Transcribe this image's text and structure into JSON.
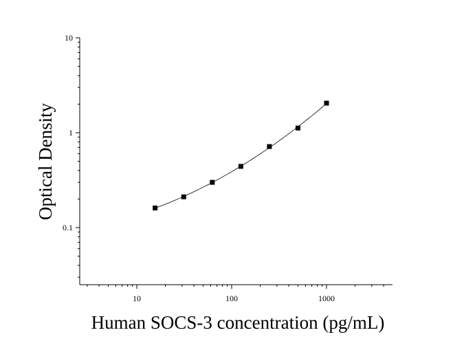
{
  "chart_data": {
    "type": "scatter",
    "xlabel": "Human SOCS-3 concentration (pg/mL)",
    "ylabel": "Optical Density",
    "xscale": "log",
    "yscale": "log",
    "xlim": [
      2.5,
      4500
    ],
    "ylim": [
      0.025,
      10
    ],
    "x_ticks": [
      10,
      100,
      1000
    ],
    "x_tick_labels": [
      "10",
      "100",
      "1000"
    ],
    "y_ticks": [
      0.1,
      1,
      10
    ],
    "y_tick_labels": [
      "0.1",
      "1",
      "10"
    ],
    "grid": false,
    "legend": "none",
    "series": [
      {
        "marker": "square",
        "color": "#000000",
        "x": [
          15.6,
          31.25,
          62.5,
          125,
          250,
          500,
          1000
        ],
        "y": [
          0.161,
          0.211,
          0.3,
          0.442,
          0.715,
          1.12,
          2.05
        ]
      }
    ],
    "fit_curve": {
      "type": "smooth-fit",
      "color": "#000000"
    }
  }
}
